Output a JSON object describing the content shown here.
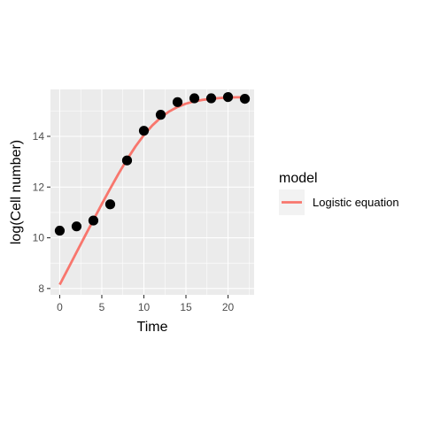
{
  "chart_data": {
    "type": "scatter",
    "title": "",
    "xlabel": "Time",
    "ylabel": "log(Cell number)",
    "xlim": [
      -1.1,
      23.1
    ],
    "ylim": [
      7.75,
      15.85
    ],
    "x_ticks": [
      0,
      5,
      10,
      15,
      20
    ],
    "y_ticks": [
      8,
      10,
      12,
      14
    ],
    "grid": true,
    "points": {
      "x": [
        0,
        2,
        4,
        6,
        8,
        10,
        12,
        14,
        16,
        18,
        20,
        22
      ],
      "y": [
        10.28,
        10.45,
        10.68,
        11.32,
        13.05,
        14.22,
        14.85,
        15.35,
        15.5,
        15.5,
        15.55,
        15.48
      ],
      "color": "#000000"
    },
    "series": [
      {
        "name": "Logistic equation",
        "type": "line",
        "color": "#F8766D",
        "x": [
          0,
          1,
          2,
          3,
          4,
          5,
          6,
          7,
          8,
          9,
          10,
          11,
          12,
          13,
          14,
          15,
          16,
          17,
          18,
          19,
          20,
          21,
          22
        ],
        "y": [
          8.15,
          8.79,
          9.43,
          10.07,
          10.7,
          11.33,
          11.94,
          12.53,
          13.09,
          13.6,
          14.05,
          14.43,
          14.74,
          14.98,
          15.16,
          15.29,
          15.38,
          15.44,
          15.48,
          15.51,
          15.53,
          15.54,
          15.54
        ]
      }
    ],
    "legend": {
      "title": "model",
      "position": "right",
      "entries": [
        "Logistic equation"
      ]
    }
  },
  "colors": {
    "panel_background": "#EBEBEB",
    "grid_major": "#FFFFFF",
    "axis_text": "#4D4D4D",
    "line": "#F8766D",
    "points": "#000000"
  }
}
